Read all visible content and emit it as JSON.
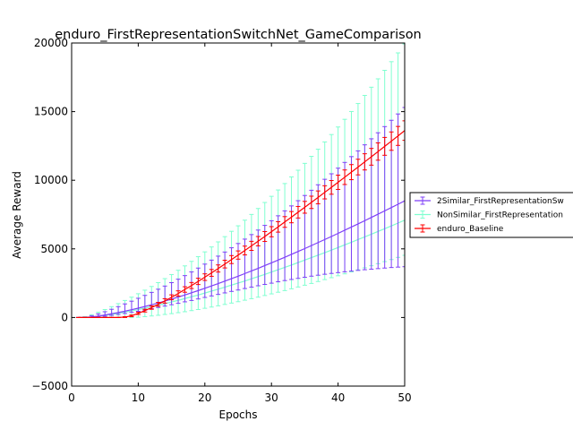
{
  "chart_data": {
    "type": "line",
    "title": "enduro_FirstRepresentationSwitchNet_GameComparison",
    "xlabel": "Epochs",
    "ylabel": "Average Reward",
    "xlim": [
      0,
      50
    ],
    "ylim": [
      -5000,
      20000
    ],
    "xticks": [
      0,
      10,
      20,
      30,
      40,
      50
    ],
    "xtick_labels": [
      "0",
      "10",
      "20",
      "30",
      "40",
      "50"
    ],
    "yticks": [
      -5000,
      0,
      5000,
      10000,
      15000,
      20000
    ],
    "ytick_labels": [
      "−5000",
      "0",
      "5000",
      "10000",
      "15000",
      "20000"
    ],
    "grid": false,
    "legend_position": "right, outside plot area",
    "error_bars": true,
    "x": [
      1,
      2,
      3,
      4,
      5,
      6,
      7,
      8,
      9,
      10,
      11,
      12,
      13,
      14,
      15,
      16,
      17,
      18,
      19,
      20,
      21,
      22,
      23,
      24,
      25,
      26,
      27,
      28,
      29,
      30,
      31,
      32,
      33,
      34,
      35,
      36,
      37,
      38,
      39,
      40,
      41,
      42,
      43,
      44,
      45,
      46,
      47,
      48,
      49,
      50
    ],
    "series": [
      {
        "name": "2Similar_FirstRepresentationSw",
        "color": "#7f3ff8",
        "values": [
          0,
          10,
          40,
          100,
          180,
          270,
          360,
          460,
          570,
          680,
          800,
          930,
          1060,
          1200,
          1340,
          1490,
          1640,
          1800,
          1960,
          2130,
          2300,
          2470,
          2650,
          2830,
          3010,
          3200,
          3390,
          3580,
          3780,
          3980,
          4180,
          4390,
          4600,
          4810,
          5020,
          5240,
          5460,
          5680,
          5900,
          6130,
          6360,
          6590,
          6820,
          7050,
          7290,
          7530,
          7770,
          8010,
          8250,
          8500
        ],
        "upper": [
          0,
          30,
          120,
          260,
          420,
          600,
          790,
          990,
          1190,
          1400,
          1610,
          1830,
          2060,
          2290,
          2540,
          2790,
          3050,
          3320,
          3600,
          3890,
          4180,
          4470,
          4770,
          5080,
          5390,
          5710,
          6040,
          6370,
          6710,
          7050,
          7410,
          7770,
          8130,
          8510,
          8890,
          9270,
          9670,
          10070,
          10470,
          10880,
          11300,
          11720,
          12140,
          12580,
          13020,
          13460,
          13910,
          14370,
          14830,
          15300
        ],
        "lower": [
          0,
          0,
          10,
          40,
          90,
          150,
          220,
          290,
          370,
          450,
          540,
          640,
          730,
          830,
          930,
          1030,
          1140,
          1240,
          1350,
          1460,
          1570,
          1680,
          1790,
          1900,
          2000,
          2110,
          2210,
          2310,
          2410,
          2500,
          2600,
          2690,
          2770,
          2850,
          2930,
          3010,
          3080,
          3150,
          3210,
          3270,
          3330,
          3380,
          3430,
          3480,
          3520,
          3560,
          3600,
          3640,
          3670,
          3700
        ]
      },
      {
        "name": "NonSimilar_FirstRepresentation",
        "color": "#7fffd0",
        "values": [
          0,
          8,
          35,
          85,
          150,
          220,
          300,
          390,
          480,
          580,
          680,
          790,
          900,
          1010,
          1130,
          1250,
          1380,
          1510,
          1640,
          1780,
          1920,
          2060,
          2210,
          2360,
          2510,
          2660,
          2820,
          2980,
          3140,
          3310,
          3480,
          3650,
          3820,
          4000,
          4180,
          4360,
          4540,
          4720,
          4910,
          5100,
          5290,
          5480,
          5680,
          5870,
          6070,
          6270,
          6470,
          6670,
          6880,
          7090
        ],
        "upper": [
          0,
          60,
          200,
          380,
          580,
          790,
          1010,
          1240,
          1480,
          1730,
          1990,
          2260,
          2540,
          2830,
          3130,
          3440,
          3760,
          4090,
          4430,
          4780,
          5140,
          5510,
          5890,
          6280,
          6680,
          7090,
          7510,
          7940,
          8380,
          8830,
          9290,
          9760,
          10240,
          10730,
          11230,
          11740,
          12260,
          12790,
          13330,
          13880,
          14440,
          15010,
          15590,
          16180,
          16780,
          17390,
          18010,
          18640,
          19280,
          19930
        ],
        "lower": [
          0,
          0,
          0,
          0,
          0,
          0,
          0,
          0,
          0,
          20,
          60,
          110,
          160,
          220,
          280,
          350,
          420,
          500,
          580,
          670,
          760,
          850,
          950,
          1050,
          1150,
          1260,
          1370,
          1480,
          1600,
          1720,
          1840,
          1960,
          2090,
          2220,
          2350,
          2480,
          2620,
          2760,
          2900,
          3040,
          3180,
          3320,
          3470,
          3620,
          3770,
          3920,
          4070,
          4220,
          4380,
          4530
        ]
      },
      {
        "name": "enduro_Baseline",
        "color": "#ff0000",
        "values": [
          0,
          0,
          0,
          0,
          0,
          0,
          0,
          30,
          120,
          300,
          500,
          720,
          960,
          1210,
          1470,
          1750,
          2040,
          2330,
          2630,
          2940,
          3250,
          3570,
          3890,
          4220,
          4550,
          4880,
          5220,
          5560,
          5900,
          6250,
          6600,
          6960,
          7310,
          7670,
          8030,
          8390,
          8750,
          9120,
          9480,
          9850,
          10220,
          10590,
          10960,
          11340,
          11710,
          12090,
          12470,
          12850,
          13230,
          13620
        ],
        "upper": [
          0,
          0,
          0,
          0,
          0,
          0,
          0,
          60,
          180,
          380,
          600,
          840,
          1100,
          1370,
          1650,
          1940,
          2240,
          2550,
          2860,
          3180,
          3500,
          3830,
          4170,
          4510,
          4850,
          5200,
          5550,
          5900,
          6260,
          6620,
          6980,
          7350,
          7720,
          8090,
          8460,
          8840,
          9220,
          9600,
          9980,
          10370,
          10750,
          11140,
          11530,
          11930,
          12320,
          12720,
          13120,
          13520,
          13920,
          14330
        ],
        "lower": [
          0,
          0,
          0,
          0,
          0,
          0,
          0,
          0,
          60,
          220,
          400,
          600,
          820,
          1050,
          1290,
          1560,
          1840,
          2110,
          2400,
          2700,
          3000,
          3310,
          3610,
          3930,
          4250,
          4560,
          4890,
          5220,
          5540,
          5880,
          6220,
          6570,
          6900,
          7250,
          7600,
          7940,
          8280,
          8640,
          8980,
          9330,
          9690,
          10040,
          10390,
          10750,
          11100,
          11460,
          11820,
          12180,
          12540,
          12910
        ]
      }
    ]
  }
}
